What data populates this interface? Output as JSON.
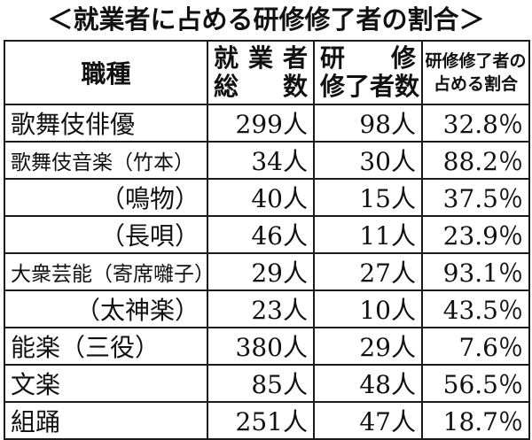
{
  "title": "＜就業者に占める研修修了者の割合＞",
  "headers": {
    "job": "職種",
    "workers_line1": "就業者",
    "workers_line2": "総　数",
    "graduates_line1": "研　修",
    "graduates_line2": "修了者数",
    "ratio_line1": "研修修了者の",
    "ratio_line2": "占める割合"
  },
  "rows": [
    {
      "job": "歌舞伎俳優",
      "workers": "299人",
      "graduates": "98人",
      "ratio": "32.8％"
    },
    {
      "job": "歌舞伎音楽（竹本）",
      "workers": "34人",
      "graduates": "30人",
      "ratio": "88.2％"
    },
    {
      "job": "（鳴物）",
      "workers": "40人",
      "graduates": "15人",
      "ratio": "37.5％"
    },
    {
      "job": "（長唄）",
      "workers": "46人",
      "graduates": "11人",
      "ratio": "23.9％"
    },
    {
      "job": "大衆芸能（寄席囃子）",
      "workers": "29人",
      "graduates": "27人",
      "ratio": "93.1％"
    },
    {
      "job": "（太神楽）",
      "workers": "23人",
      "graduates": "10人",
      "ratio": "43.5％"
    },
    {
      "job": "能楽（三役）",
      "workers": "380人",
      "graduates": "29人",
      "ratio": "7.6％"
    },
    {
      "job": "文楽",
      "workers": "85人",
      "graduates": "48人",
      "ratio": "56.5％"
    },
    {
      "job": "組踊",
      "workers": "251人",
      "graduates": "47人",
      "ratio": "18.7％"
    }
  ]
}
